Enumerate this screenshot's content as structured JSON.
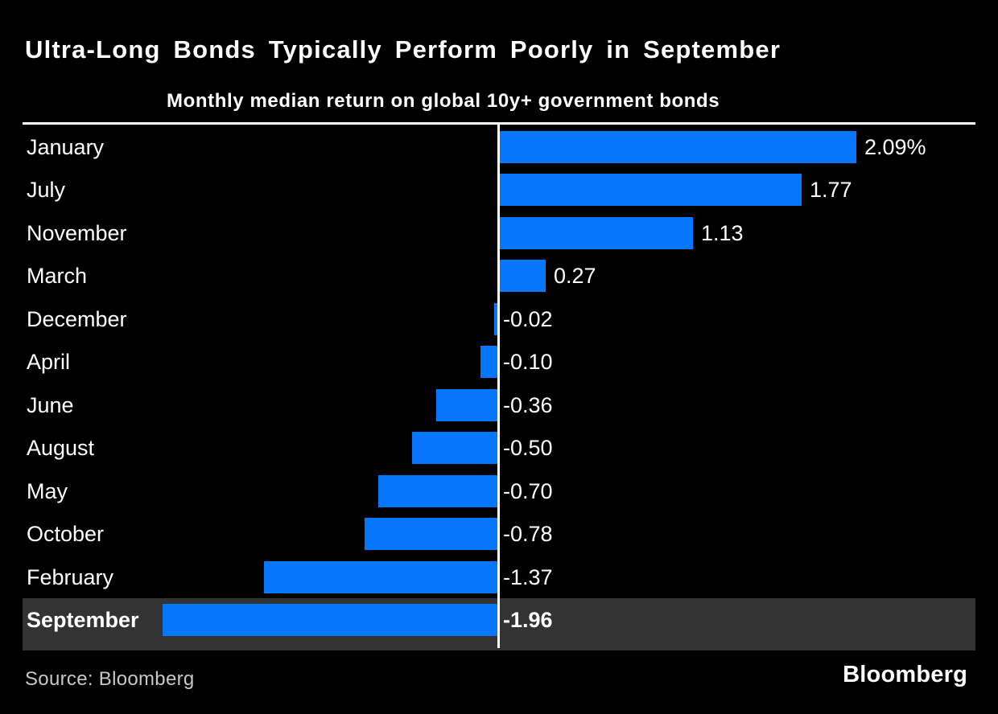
{
  "header": {
    "title": "Ultra-Long Bonds Typically Perform Poorly in September",
    "subtitle": "Monthly median return on global 10y+ government bonds"
  },
  "chart_data": {
    "type": "bar",
    "orientation": "horizontal",
    "title": "Ultra-Long Bonds Typically Perform Poorly in September",
    "subtitle": "Monthly median return on global 10y+ government bonds",
    "categories": [
      "January",
      "July",
      "November",
      "March",
      "December",
      "April",
      "June",
      "August",
      "May",
      "October",
      "February",
      "September"
    ],
    "values": [
      2.09,
      1.77,
      1.13,
      0.27,
      -0.02,
      -0.1,
      -0.36,
      -0.5,
      -0.7,
      -0.78,
      -1.37,
      -1.96
    ],
    "value_labels": [
      "2.09%",
      "1.77",
      "1.13",
      "0.27",
      "-0.02",
      "-0.10",
      "-0.36",
      "-0.50",
      "-0.70",
      "-0.78",
      "-1.37",
      "-1.96"
    ],
    "unit": "%",
    "xlim": [
      -1.96,
      2.09
    ],
    "grid": false,
    "legend": false,
    "highlighted_category": "September",
    "bar_color": "#0677fb",
    "highlight_band_color": "#333333",
    "axis_color": "#ffffff",
    "label_color": "#ffffff"
  },
  "footer": {
    "source_text": "Source: Bloomberg",
    "brand": "Bloomberg"
  }
}
